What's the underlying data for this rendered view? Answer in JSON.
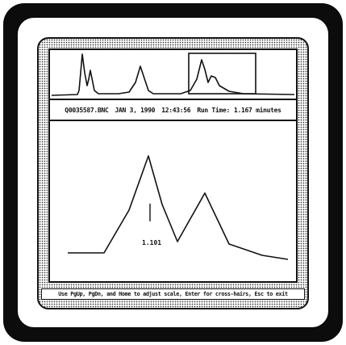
{
  "info_bar": {
    "filename": "Q0035587.BNC",
    "date": "JAN 3, 1990",
    "time": "12:43:56",
    "run_time_label": "Run Time:",
    "run_time_value": "1.167 minutes"
  },
  "main_plot": {
    "peak_label": "1.101"
  },
  "help_bar": {
    "text": "Use PgUp, PgDn, and Home to adjust scale, Enter for cross-hairs, Esc to exit"
  },
  "colors": {
    "ink": "#111111",
    "bezel": "#0c0c0c",
    "paper": "#ffffff"
  }
}
